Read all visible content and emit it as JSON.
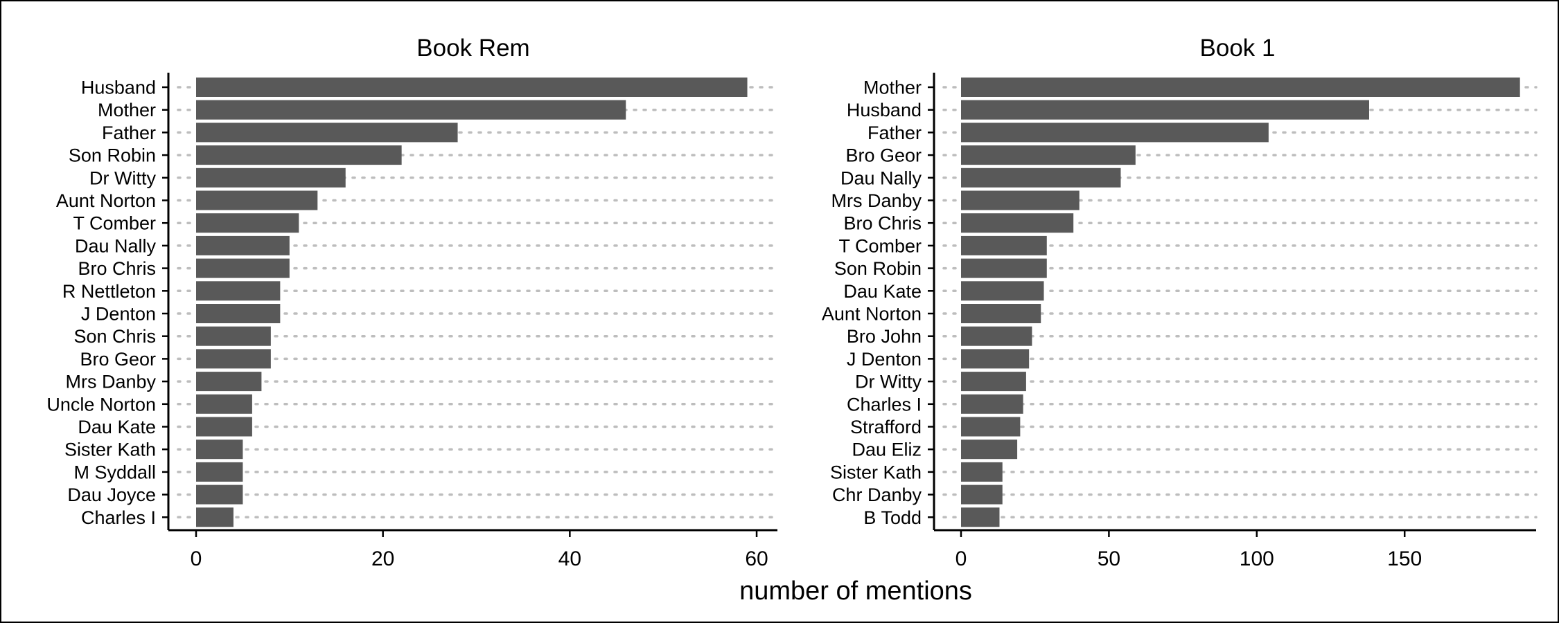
{
  "chart_data": {
    "type": "bar",
    "orientation": "horizontal",
    "grid": "dotted horizontal guide lines per category",
    "xlabel": "number of mentions",
    "colors": {
      "bar": "#595959",
      "grid": "#bdbdbd",
      "axis": "#000000"
    },
    "panels": [
      {
        "title": "Book Rem",
        "xlim": [
          0,
          62
        ],
        "xticks": [
          0,
          20,
          40,
          60
        ],
        "categories": [
          "Husband",
          "Mother",
          "Father",
          "Son Robin",
          "Dr Witty",
          "Aunt Norton",
          "T Comber",
          "Dau Nally",
          "Bro Chris",
          "R Nettleton",
          "J Denton",
          "Son Chris",
          "Bro Geor",
          "Mrs Danby",
          "Uncle Norton",
          "Dau Kate",
          "Sister Kath",
          "M Syddall",
          "Dau Joyce",
          "Charles I"
        ],
        "values": [
          59,
          46,
          28,
          22,
          16,
          13,
          11,
          10,
          10,
          9,
          9,
          8,
          8,
          7,
          6,
          6,
          5,
          5,
          5,
          4
        ]
      },
      {
        "title": "Book 1",
        "xlim": [
          0,
          194
        ],
        "xticks": [
          0,
          50,
          100,
          150
        ],
        "categories": [
          "Mother",
          "Husband",
          "Father",
          "Bro Geor",
          "Dau Nally",
          "Mrs Danby",
          "Bro Chris",
          "T Comber",
          "Son Robin",
          "Dau Kate",
          "Aunt Norton",
          "Bro John",
          "J Denton",
          "Dr Witty",
          "Charles I",
          "Strafford",
          "Dau Eliz",
          "Sister Kath",
          "Chr Danby",
          "B Todd"
        ],
        "values": [
          189,
          138,
          104,
          59,
          54,
          40,
          38,
          29,
          29,
          28,
          27,
          24,
          23,
          22,
          21,
          20,
          19,
          14,
          14,
          13
        ]
      }
    ]
  }
}
